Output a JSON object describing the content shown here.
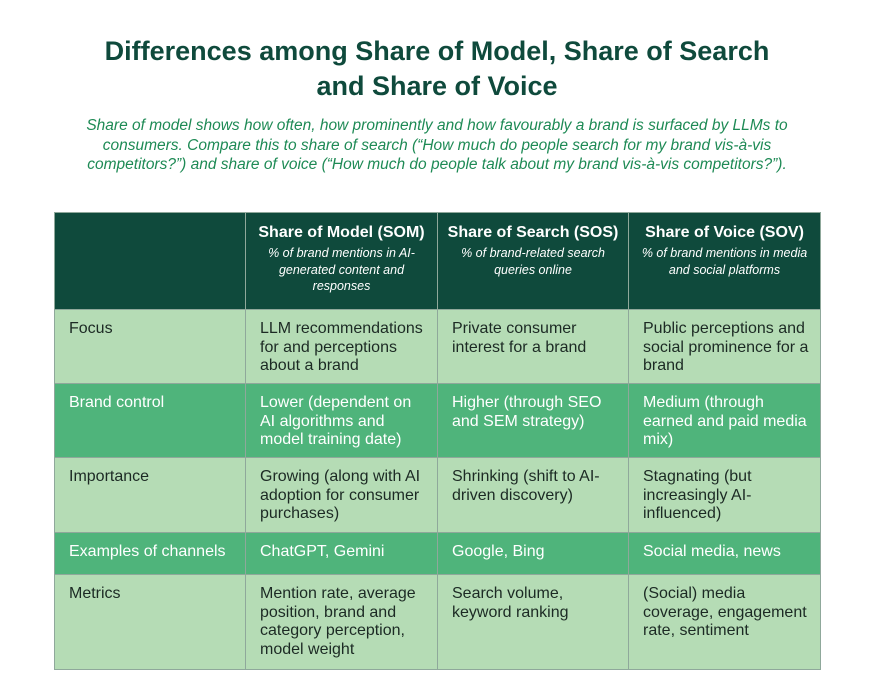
{
  "title_line1": "Differences among Share of Model, Share of Search",
  "title_line2": "and Share of Voice",
  "subtitle": "Share of model shows how often, how prominently and how favourably a brand is surfaced by LLMs to consumers. Compare this to share of search (“How much do people search for my brand vis-à-vis competitors?”) and share of voice (“How much do people talk about my brand vis-à-vis competitors?”).",
  "columns": [
    {
      "title": "Share of Model (SOM)",
      "desc": "% of brand mentions in AI-generated content and responses"
    },
    {
      "title": "Share of Search (SOS)",
      "desc": "% of brand-related search queries online"
    },
    {
      "title": "Share of Voice (SOV)",
      "desc": "% of brand mentions in media and social platforms"
    }
  ],
  "rows": [
    {
      "label": "Focus",
      "cells": [
        "LLM recommendations for and perceptions about a brand",
        "Private consumer interest for a brand",
        "Public perceptions and social prominence for a brand"
      ]
    },
    {
      "label": "Brand control",
      "cells": [
        "Lower (dependent on AI algorithms and model training date)",
        "Higher (through SEO and SEM strategy)",
        "Medium (through earned and paid media mix)"
      ]
    },
    {
      "label": "Importance",
      "cells": [
        "Growing (along with AI adoption for consumer purchases)",
        "Shrinking (shift to AI-driven discovery)",
        "Stagnating (but increasingly AI-influenced)"
      ]
    },
    {
      "label": "Examples of channels",
      "cells": [
        "ChatGPT, Gemini",
        "Google, Bing",
        "Social media, news"
      ]
    },
    {
      "label": "Metrics",
      "cells": [
        "Mention rate, average position, brand and category perception, model weight",
        "Search volume, keyword ranking",
        "(Social) media coverage, engagement rate, sentiment"
      ]
    }
  ]
}
